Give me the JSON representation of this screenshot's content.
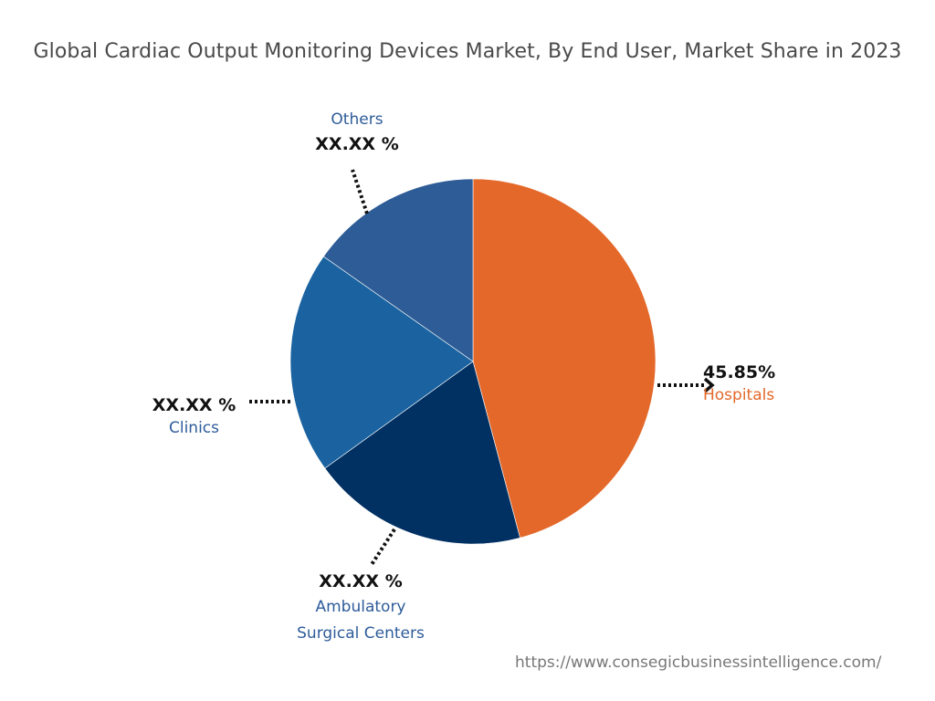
{
  "chart_data": {
    "type": "pie",
    "title": "Global Cardiac Output Monitoring Devices Market, By End User, Market Share in 2023",
    "slices": [
      {
        "label": "Hospitals",
        "value": 45.85,
        "value_label": "45.85%",
        "color": "#E4682A",
        "label_color": "#E4682A"
      },
      {
        "label": "Ambulatory Surgical Centers",
        "label_lines": [
          "Ambulatory",
          "Surgical Centers"
        ],
        "value": 19.2,
        "value_label": "XX.XX %",
        "color": "#013063",
        "label_color": "#2E5C9A"
      },
      {
        "label": "Clinics",
        "value": 19.7,
        "value_label": "XX.XX %",
        "color": "#1A63A0",
        "label_color": "#2E5C9A"
      },
      {
        "label": "Others",
        "value": 15.25,
        "value_label": "XX.XX %",
        "color": "#2E5C96",
        "label_color": "#2E5C9A"
      }
    ],
    "start_angle": "top, clockwise"
  },
  "source": "https://www.consegicbusinessintelligence.com/"
}
